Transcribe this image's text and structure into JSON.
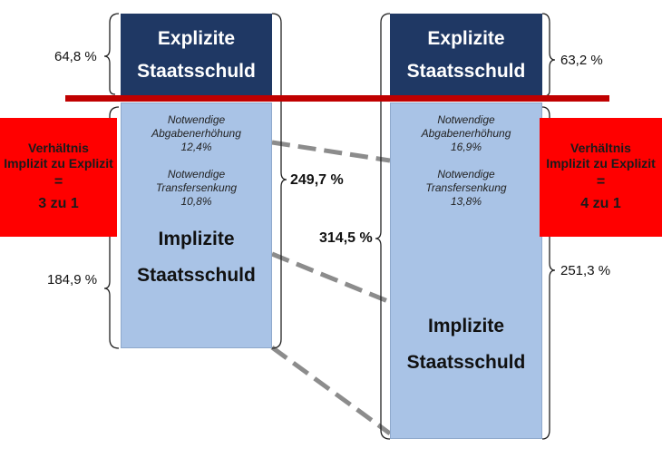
{
  "left_column": {
    "explicit_line1": "Explizite",
    "explicit_line2": "Staatsschuld",
    "explicit_pct": "64,8 %",
    "tax_label_1": "Notwendige",
    "tax_label_2": "Abgabenerhöhung",
    "tax_value": "12,4%",
    "transfer_label_1": "Notwendige",
    "transfer_label_2": "Transfersenkung",
    "transfer_value": "10,8%",
    "implicit_line1": "Implizite",
    "implicit_line2": "Staatsschuld",
    "implicit_pct": "184,9 %",
    "total_pct": "249,7 %",
    "ratio_line1": "Verhältnis",
    "ratio_line2": "Implizit zu Explizit",
    "ratio_line3": "=",
    "ratio_line4": "3 zu 1"
  },
  "right_column": {
    "explicit_line1": "Explizite",
    "explicit_line2": "Staatsschuld",
    "explicit_pct": "63,2 %",
    "tax_label_1": "Notwendige",
    "tax_label_2": "Abgabenerhöhung",
    "tax_value": "16,9%",
    "transfer_label_1": "Notwendige",
    "transfer_label_2": "Transfersenkung",
    "transfer_value": "13,8%",
    "implicit_line1": "Implizite",
    "implicit_line2": "Staatsschuld",
    "implicit_pct": "251,3 %",
    "total_pct": "314,5 %",
    "ratio_line1": "Verhältnis",
    "ratio_line2": "Implizit zu Explizit",
    "ratio_line3": "=",
    "ratio_line4": "4 zu 1"
  },
  "colors": {
    "explicit_box": "#1f3864",
    "implicit_box": "#a9c3e6",
    "ratio_box": "#ff0000",
    "divider_line": "#c00000",
    "connector": "#8c8c8c"
  }
}
